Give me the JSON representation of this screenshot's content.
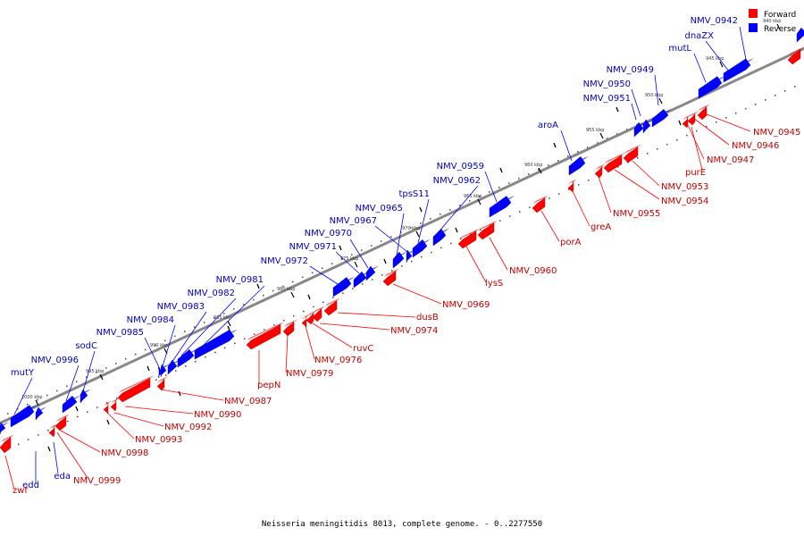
{
  "caption": "Neisseria meningitidis 8013, complete genome. - 0..2277550",
  "legend": [
    {
      "label": "Forward",
      "color": "#ff0000"
    },
    {
      "label": "Reverse",
      "color": "#0000ff"
    }
  ],
  "colors": {
    "forward": "#ff0000",
    "reverse": "#0000ff",
    "forward_label": "#c00000",
    "reverse_label": "#0000c0",
    "backbone": "#888888"
  },
  "ticks": [
    {
      "label": "940 kbp",
      "kbp": 940
    },
    {
      "label": "945 kbp",
      "kbp": 945
    },
    {
      "label": "950 kbp",
      "kbp": 950
    },
    {
      "label": "955 kbp",
      "kbp": 955
    },
    {
      "label": "960 kbp",
      "kbp": 960
    },
    {
      "label": "965 kbp",
      "kbp": 965
    },
    {
      "label": "970 kbp",
      "kbp": 970
    },
    {
      "label": "975 kbp",
      "kbp": 975
    },
    {
      "label": "980 kbp",
      "kbp": 980
    },
    {
      "label": "985 kbp",
      "kbp": 985
    },
    {
      "label": "990 kbp",
      "kbp": 990
    },
    {
      "label": "995 kbp",
      "kbp": 995
    },
    {
      "label": "1000 kbp",
      "kbp": 1000
    }
  ],
  "genes_reverse": [
    {
      "name": "NMV_0942",
      "strand": "reverse"
    },
    {
      "name": "dnaZX",
      "strand": "reverse"
    },
    {
      "name": "mutL",
      "strand": "reverse"
    },
    {
      "name": "NMV_0949",
      "strand": "reverse"
    },
    {
      "name": "NMV_0950",
      "strand": "reverse"
    },
    {
      "name": "NMV_0951",
      "strand": "reverse"
    },
    {
      "name": "aroA",
      "strand": "reverse"
    },
    {
      "name": "NMV_0959",
      "strand": "reverse"
    },
    {
      "name": "NMV_0962",
      "strand": "reverse"
    },
    {
      "name": "tpsS11",
      "strand": "reverse"
    },
    {
      "name": "NMV_0965",
      "strand": "reverse"
    },
    {
      "name": "NMV_0967",
      "strand": "reverse"
    },
    {
      "name": "NMV_0970",
      "strand": "reverse"
    },
    {
      "name": "NMV_0971",
      "strand": "reverse"
    },
    {
      "name": "NMV_0972",
      "strand": "reverse"
    },
    {
      "name": "NMV_0981",
      "strand": "reverse"
    },
    {
      "name": "NMV_0982",
      "strand": "reverse"
    },
    {
      "name": "NMV_0983",
      "strand": "reverse"
    },
    {
      "name": "NMV_0984",
      "strand": "reverse"
    },
    {
      "name": "NMV_0985",
      "strand": "reverse"
    },
    {
      "name": "sodC",
      "strand": "reverse"
    },
    {
      "name": "NMV_0996",
      "strand": "reverse"
    },
    {
      "name": "mutY",
      "strand": "reverse"
    },
    {
      "name": "edd",
      "strand": "reverse"
    },
    {
      "name": "eda",
      "strand": "reverse"
    }
  ],
  "genes_forward": [
    {
      "name": "NMV_0945",
      "strand": "forward"
    },
    {
      "name": "NMV_0946",
      "strand": "forward"
    },
    {
      "name": "NMV_0947",
      "strand": "forward"
    },
    {
      "name": "purE",
      "strand": "forward"
    },
    {
      "name": "NMV_0953",
      "strand": "forward"
    },
    {
      "name": "NMV_0954",
      "strand": "forward"
    },
    {
      "name": "NMV_0955",
      "strand": "forward"
    },
    {
      "name": "greA",
      "strand": "forward"
    },
    {
      "name": "porA",
      "strand": "forward"
    },
    {
      "name": "NMV_0960",
      "strand": "forward"
    },
    {
      "name": "lysS",
      "strand": "forward"
    },
    {
      "name": "NMV_0969",
      "strand": "forward"
    },
    {
      "name": "dusB",
      "strand": "forward"
    },
    {
      "name": "NMV_0974",
      "strand": "forward"
    },
    {
      "name": "ruvC",
      "strand": "forward"
    },
    {
      "name": "NMV_0976",
      "strand": "forward"
    },
    {
      "name": "NMV_0979",
      "strand": "forward"
    },
    {
      "name": "pepN",
      "strand": "forward"
    },
    {
      "name": "NMV_0987",
      "strand": "forward"
    },
    {
      "name": "NMV_0990",
      "strand": "forward"
    },
    {
      "name": "NMV_0992",
      "strand": "forward"
    },
    {
      "name": "NMV_0993",
      "strand": "forward"
    },
    {
      "name": "NMV_0998",
      "strand": "forward"
    },
    {
      "name": "NMV_0999",
      "strand": "forward"
    },
    {
      "name": "zwf",
      "strand": "forward"
    }
  ]
}
